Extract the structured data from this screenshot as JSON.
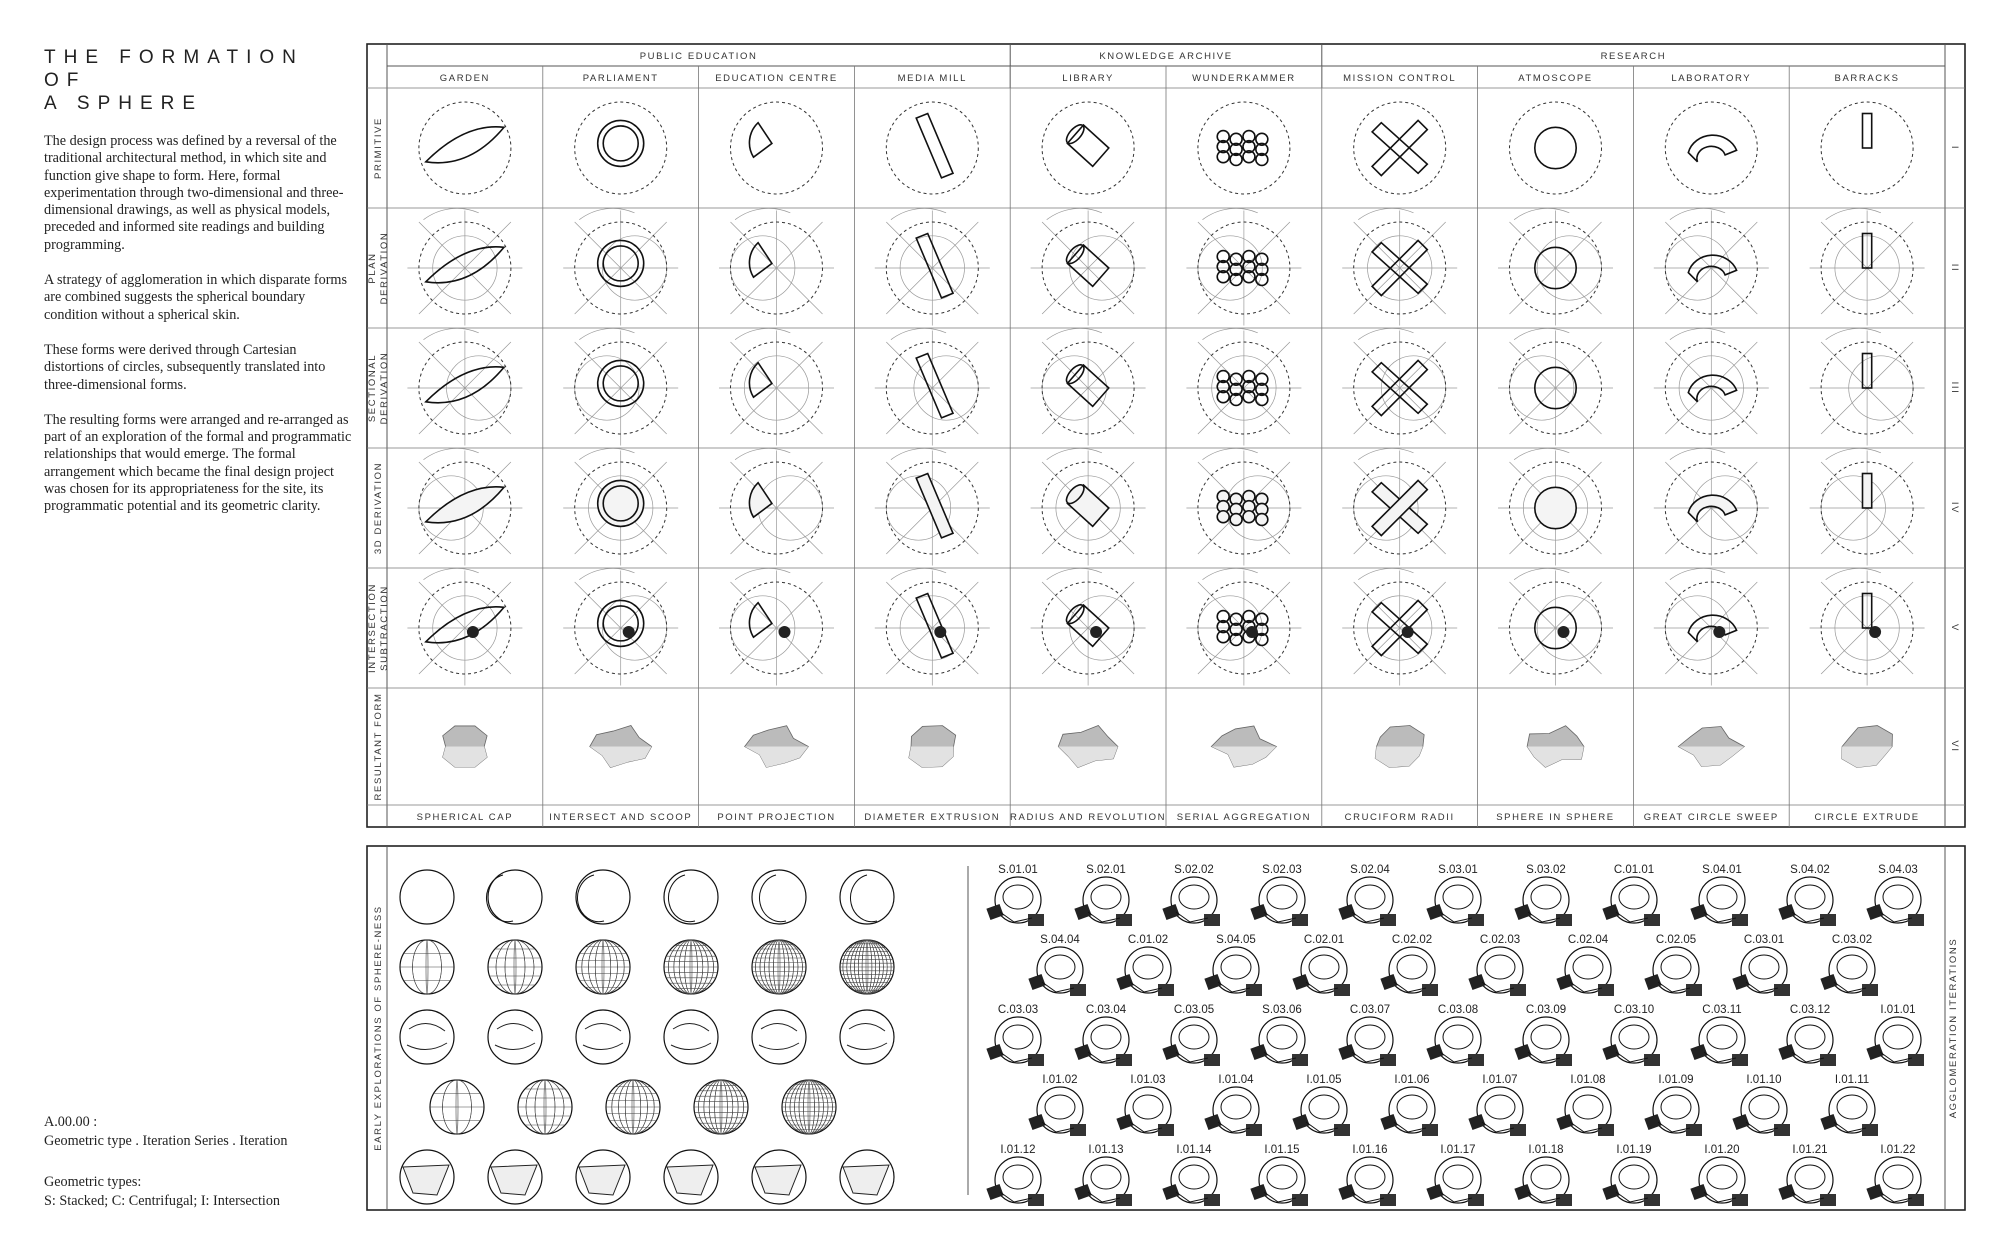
{
  "title": "THE FORMATION OF A SPHERE",
  "title_lines": [
    "THE FORMATION OF",
    "A SPHERE"
  ],
  "paragraphs": [
    "The design process was defined by a reversal of the traditional architectural method, in which site and function give shape to form. Here, formal experimentation through two-dimensional and three-dimensional drawings, as well as physical models, preceded and informed site readings and building programming.",
    "A strategy of agglomeration in which disparate forms are combined suggests the spherical boundary condition without a spherical skin.",
    "These forms were derived through Cartesian distortions of circles, subsequently translated into three-dimensional forms.",
    "The resulting forms were arranged and re-arranged as part of an exploration of the formal and programmatic relationships that would emerge. The formal arrangement which became the final design project was chosen for its appropriateness for the site, its programmatic potential and its geometric clarity."
  ],
  "legend": {
    "code": "A.00.00 :",
    "code_desc": "Geometric type . Iteration Series . Iteration",
    "types_label": "Geometric types:",
    "types": "S: Stacked; C: Centrifugal; I: Intersection"
  },
  "matrix": {
    "groups": [
      {
        "label": "PUBLIC EDUCATION",
        "span": 4
      },
      {
        "label": "KNOWLEDGE ARCHIVE",
        "span": 2
      },
      {
        "label": "RESEARCH",
        "span": 4
      }
    ],
    "columns": [
      "GARDEN",
      "PARLIAMENT",
      "EDUCATION CENTRE",
      "MEDIA MILL",
      "LIBRARY",
      "WUNDERKAMMER",
      "MISSION CONTROL",
      "ATMOSCOPE",
      "LABORATORY",
      "BARRACKS"
    ],
    "rows": [
      {
        "label": [
          "PRIMITIVE"
        ],
        "numeral": "I"
      },
      {
        "label": [
          "PLAN",
          "DERIVATION"
        ],
        "numeral": "II"
      },
      {
        "label": [
          "SECTIONAL",
          "DERIVATION"
        ],
        "numeral": "III"
      },
      {
        "label": [
          "3D DERIVATION"
        ],
        "numeral": "IV"
      },
      {
        "label": [
          "INTERSECTION",
          "SUBTRACTION"
        ],
        "numeral": "V"
      },
      {
        "label": [
          "RESULTANT FORM"
        ],
        "numeral": "VI"
      }
    ],
    "footer": [
      "SPHERICAL CAP",
      "INTERSECT AND SCOOP",
      "POINT PROJECTION",
      "DIAMETER EXTRUSION",
      "RADIUS AND REVOLUTION",
      "SERIAL AGGREGATION",
      "CRUCIFORM RADII",
      "SPHERE IN SPHERE",
      "GREAT CIRCLE SWEEP",
      "CIRCLE EXTRUDE"
    ]
  },
  "explorations": {
    "side_label": "EARLY EXPLORATIONS OF SPHERE-NESS",
    "right_label": "AGGLOMERATION ITERATIONS",
    "iterations": [
      [
        "S.01.01",
        "S.02.01",
        "S.02.02",
        "S.02.03",
        "S.02.04",
        "S.03.01",
        "S.03.02",
        "C.01.01",
        "S.04.01",
        "S.04.02",
        "S.04.03"
      ],
      [
        "S.04.04",
        "C.01.02",
        "S.04.05",
        "C.02.01",
        "C.02.02",
        "C.02.03",
        "C.02.04",
        "C.02.05",
        "C.03.01",
        "C.03.02"
      ],
      [
        "C.03.03",
        "C.03.04",
        "C.03.05",
        "S.03.06",
        "C.03.07",
        "C.03.08",
        "C.03.09",
        "C.03.10",
        "C.03.11",
        "C.03.12",
        "I.01.01"
      ],
      [
        "I.01.02",
        "I.01.03",
        "I.01.04",
        "I.01.05",
        "I.01.06",
        "I.01.07",
        "I.01.08",
        "I.01.09",
        "I.01.10",
        "I.01.11"
      ],
      [
        "I.01.12",
        "I.01.13",
        "I.01.14",
        "I.01.15",
        "I.01.16",
        "I.01.17",
        "I.01.18",
        "I.01.19",
        "I.01.20",
        "I.01.21",
        "I.01.22"
      ]
    ]
  }
}
